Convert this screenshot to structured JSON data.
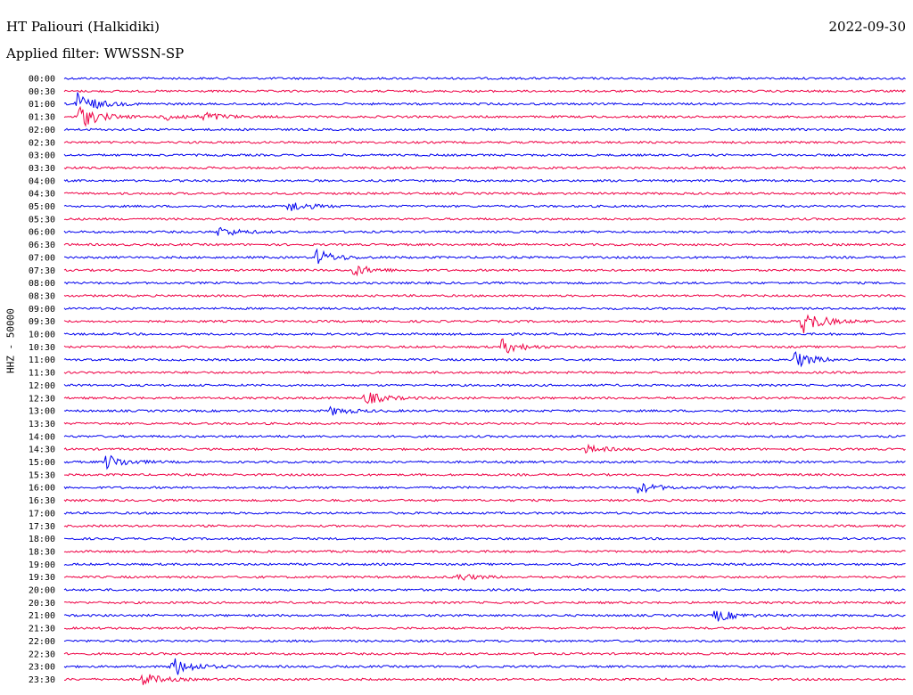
{
  "header": {
    "station": "HT Paliouri (Halkidiki)",
    "date": "2022-09-30",
    "filter": "Applied filter: WWSSN-SP"
  },
  "chart_data": {
    "type": "line",
    "title": "HT Paliouri (Halkidiki)",
    "subtitle": "Applied filter: WWSSN-SP",
    "ylabel": "HHZ - 50000",
    "xlabel": "",
    "colors": {
      "even_rows": "#0000ee",
      "odd_rows": "#ee0044"
    },
    "grid": false,
    "legend": "none",
    "rows": [
      "00:00",
      "00:30",
      "01:00",
      "01:30",
      "02:00",
      "02:30",
      "03:00",
      "03:30",
      "04:00",
      "04:30",
      "05:00",
      "05:30",
      "06:00",
      "06:30",
      "07:00",
      "07:30",
      "08:00",
      "08:30",
      "09:00",
      "09:30",
      "10:00",
      "10:30",
      "11:00",
      "11:30",
      "12:00",
      "12:30",
      "13:00",
      "13:30",
      "14:00",
      "14:30",
      "15:00",
      "15:30",
      "16:00",
      "16:30",
      "17:00",
      "17:30",
      "18:00",
      "18:30",
      "19:00",
      "19:30",
      "20:00",
      "20:30",
      "21:00",
      "21:30",
      "22:00",
      "22:30",
      "23:00",
      "23:30"
    ],
    "x_range_minutes": [
      0,
      30
    ],
    "events": [
      {
        "row": "01:00",
        "minute": 0.4,
        "amplitude": 1.0
      },
      {
        "row": "01:30",
        "minute": 0.5,
        "amplitude": 1.0
      },
      {
        "row": "01:30",
        "minute": 3.6,
        "amplitude": 0.3
      },
      {
        "row": "01:30",
        "minute": 5.0,
        "amplitude": 0.35
      },
      {
        "row": "05:00",
        "minute": 8.0,
        "amplitude": 0.45
      },
      {
        "row": "06:00",
        "minute": 5.5,
        "amplitude": 0.4
      },
      {
        "row": "07:00",
        "minute": 9.0,
        "amplitude": 0.6
      },
      {
        "row": "07:30",
        "minute": 10.3,
        "amplitude": 0.45
      },
      {
        "row": "09:30",
        "minute": 26.3,
        "amplitude": 1.0
      },
      {
        "row": "10:30",
        "minute": 15.6,
        "amplitude": 0.6
      },
      {
        "row": "11:00",
        "minute": 26.0,
        "amplitude": 0.7
      },
      {
        "row": "12:30",
        "minute": 10.7,
        "amplitude": 0.55
      },
      {
        "row": "13:00",
        "minute": 9.5,
        "amplitude": 0.35
      },
      {
        "row": "14:30",
        "minute": 18.6,
        "amplitude": 0.3
      },
      {
        "row": "15:00",
        "minute": 1.5,
        "amplitude": 0.6
      },
      {
        "row": "16:00",
        "minute": 20.5,
        "amplitude": 0.4
      },
      {
        "row": "19:30",
        "minute": 14.0,
        "amplitude": 0.3
      },
      {
        "row": "21:00",
        "minute": 23.2,
        "amplitude": 0.5
      },
      {
        "row": "23:00",
        "minute": 3.8,
        "amplitude": 0.9
      },
      {
        "row": "23:30",
        "minute": 2.8,
        "amplitude": 0.5
      }
    ]
  }
}
